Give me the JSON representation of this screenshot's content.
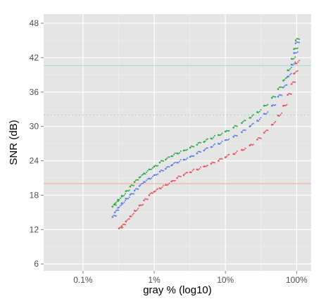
{
  "chart_data": {
    "type": "scatter",
    "title": "",
    "xlabel": "gray % (log10)",
    "ylabel": "SNR (dB)",
    "x_scale": "log10",
    "x_ticks": [
      {
        "value": 0.1,
        "label": "0.1%"
      },
      {
        "value": 1,
        "label": "1%"
      },
      {
        "value": 10,
        "label": "10%"
      },
      {
        "value": 100,
        "label": "100%"
      }
    ],
    "y_ticks": [
      {
        "value": 6,
        "label": "6"
      },
      {
        "value": 12,
        "label": "12"
      },
      {
        "value": 18,
        "label": "18"
      },
      {
        "value": 24,
        "label": "24"
      },
      {
        "value": 30,
        "label": "30"
      },
      {
        "value": 36,
        "label": "36"
      },
      {
        "value": 42,
        "label": "42"
      },
      {
        "value": 48,
        "label": "48"
      }
    ],
    "xlim": [
      0.028,
      160
    ],
    "ylim": [
      4.8,
      49.6
    ],
    "grid": true,
    "background": "#e5e5e5",
    "reference_lines": [
      {
        "y": 40.6,
        "color": "#a8dcd6",
        "style": "solid"
      },
      {
        "y": 32.0,
        "color": "#a8dcd6",
        "style": "dotted"
      },
      {
        "y": 20.0,
        "color": "#f0b8a8",
        "style": "solid"
      }
    ],
    "series": [
      {
        "color": "#2eaa4a",
        "points": [
          [
            0.26,
            16.0
          ],
          [
            0.28,
            16.5
          ],
          [
            0.31,
            17.2
          ],
          [
            0.35,
            17.9
          ],
          [
            0.4,
            18.7
          ],
          [
            0.46,
            19.5
          ],
          [
            0.53,
            20.3
          ],
          [
            0.62,
            21.1
          ],
          [
            0.72,
            21.8
          ],
          [
            0.85,
            22.5
          ],
          [
            1.0,
            23.0
          ],
          [
            1.2,
            23.7
          ],
          [
            1.45,
            24.2
          ],
          [
            1.75,
            24.8
          ],
          [
            2.1,
            25.3
          ],
          [
            2.6,
            25.8
          ],
          [
            3.2,
            26.3
          ],
          [
            4.0,
            26.8
          ],
          [
            5.0,
            27.3
          ],
          [
            6.3,
            27.9
          ],
          [
            8.0,
            28.5
          ],
          [
            10,
            29.1
          ],
          [
            13,
            29.8
          ],
          [
            17,
            30.6
          ],
          [
            22,
            31.5
          ],
          [
            28,
            32.5
          ],
          [
            35,
            33.6
          ],
          [
            45,
            35.0
          ],
          [
            55,
            36.5
          ],
          [
            65,
            38.0
          ],
          [
            75,
            39.8
          ],
          [
            85,
            41.8
          ],
          [
            92,
            43.5
          ],
          [
            97,
            45.0
          ]
        ]
      },
      {
        "color": "#5c7fe6",
        "points": [
          [
            0.26,
            14.2
          ],
          [
            0.28,
            15.0
          ],
          [
            0.31,
            15.8
          ],
          [
            0.35,
            16.6
          ],
          [
            0.4,
            17.4
          ],
          [
            0.46,
            18.1
          ],
          [
            0.53,
            18.8
          ],
          [
            0.62,
            19.6
          ],
          [
            0.72,
            20.3
          ],
          [
            0.85,
            20.9
          ],
          [
            1.0,
            21.5
          ],
          [
            1.2,
            22.1
          ],
          [
            1.45,
            22.6
          ],
          [
            1.75,
            23.2
          ],
          [
            2.1,
            23.7
          ],
          [
            2.6,
            24.2
          ],
          [
            3.2,
            24.7
          ],
          [
            4.0,
            25.3
          ],
          [
            5.0,
            25.8
          ],
          [
            6.3,
            26.4
          ],
          [
            8.0,
            27.0
          ],
          [
            10,
            27.6
          ],
          [
            13,
            28.2
          ],
          [
            17,
            29.0
          ],
          [
            22,
            30.0
          ],
          [
            28,
            31.0
          ],
          [
            35,
            32.2
          ],
          [
            45,
            33.6
          ],
          [
            55,
            35.2
          ],
          [
            65,
            36.8
          ],
          [
            75,
            38.7
          ],
          [
            85,
            40.8
          ],
          [
            92,
            42.8
          ],
          [
            97,
            44.5
          ]
        ]
      },
      {
        "color": "#e8505f",
        "points": [
          [
            0.32,
            12.2
          ],
          [
            0.35,
            12.6
          ],
          [
            0.4,
            13.4
          ],
          [
            0.46,
            14.3
          ],
          [
            0.53,
            15.3
          ],
          [
            0.62,
            16.2
          ],
          [
            0.72,
            17.1
          ],
          [
            0.85,
            18.0
          ],
          [
            1.0,
            18.6
          ],
          [
            1.2,
            19.2
          ],
          [
            1.45,
            19.8
          ],
          [
            1.75,
            20.4
          ],
          [
            2.1,
            21.0
          ],
          [
            2.6,
            21.5
          ],
          [
            3.2,
            22.0
          ],
          [
            4.0,
            22.5
          ],
          [
            5.0,
            23.0
          ],
          [
            6.3,
            23.5
          ],
          [
            8.0,
            24.0
          ],
          [
            10,
            24.6
          ],
          [
            13,
            25.2
          ],
          [
            17,
            25.9
          ],
          [
            22,
            26.7
          ],
          [
            28,
            27.7
          ],
          [
            35,
            28.9
          ],
          [
            45,
            30.3
          ],
          [
            55,
            31.9
          ],
          [
            65,
            33.6
          ],
          [
            75,
            35.5
          ],
          [
            85,
            37.4
          ],
          [
            92,
            39.2
          ],
          [
            97,
            41.0
          ]
        ]
      }
    ]
  }
}
